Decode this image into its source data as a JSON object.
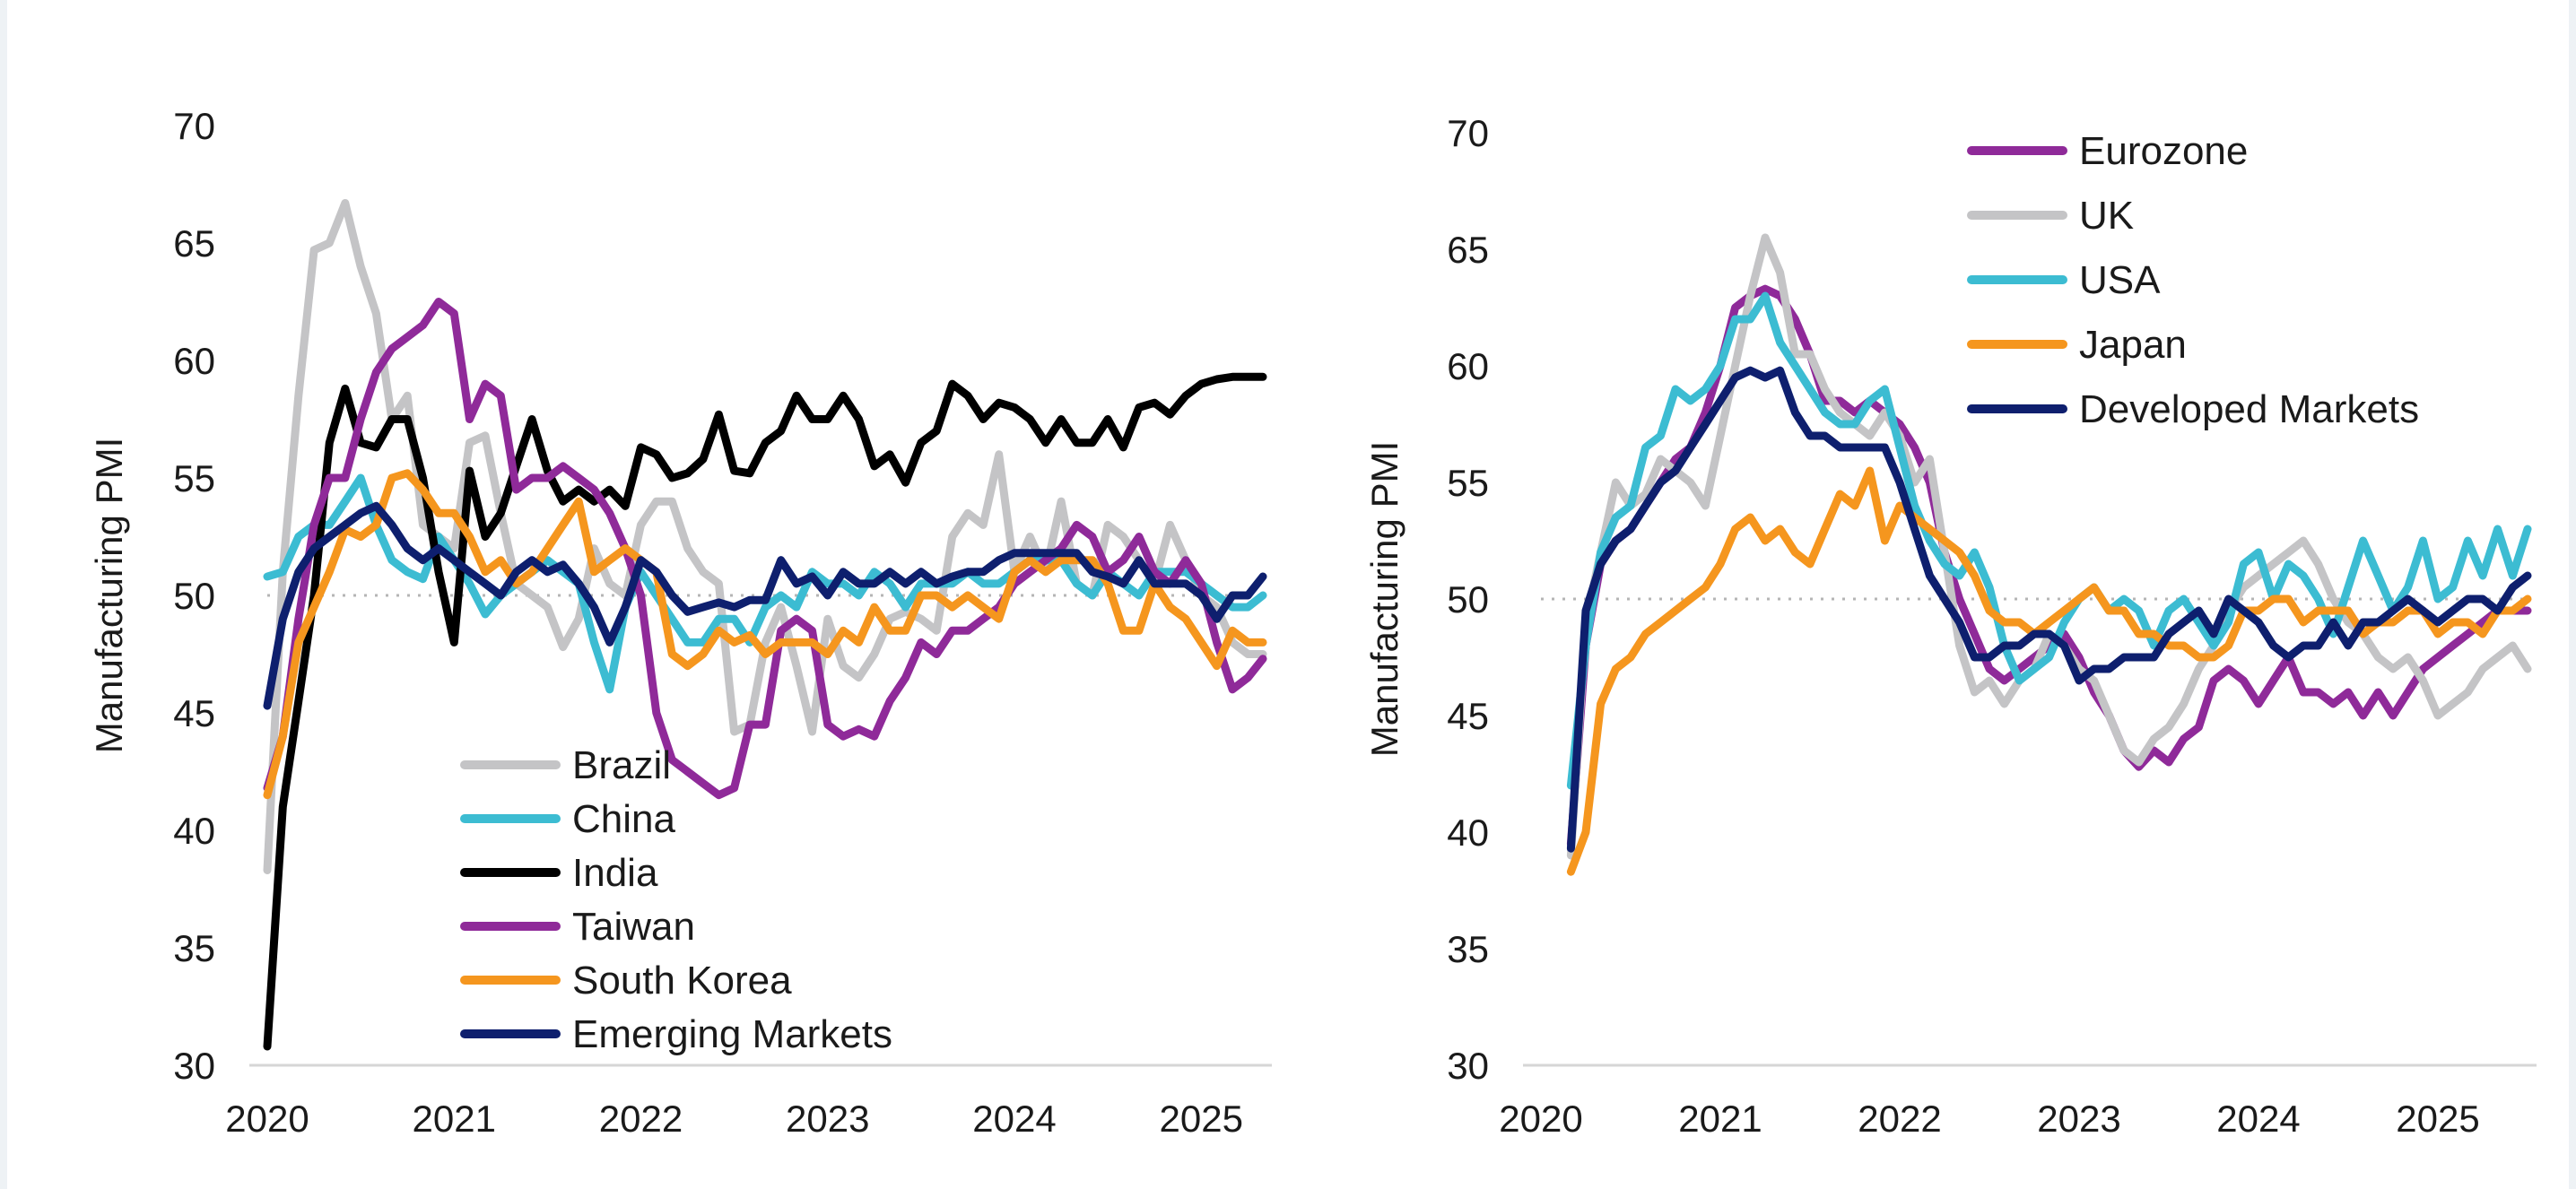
{
  "colors": {
    "grey": "#c4c4c6",
    "cyan": "#3cbcd2",
    "black": "#000000",
    "purple": "#8f2a99",
    "orange": "#f5961e",
    "navy": "#0e1f6e",
    "reference_line": "#b5b5b5",
    "axis": "#d6d6d6"
  },
  "chart_data": [
    {
      "type": "line",
      "ylabel": "Manufacturing PMI",
      "xlabel": "",
      "ylim": [
        30,
        70
      ],
      "yticks": [
        "30",
        "35",
        "40",
        "45",
        "50",
        "55",
        "60",
        "65",
        "70"
      ],
      "xticks": [
        "2020",
        "2021",
        "2022",
        "2023",
        "2024",
        "2025"
      ],
      "xlim": [
        2020,
        2025.33
      ],
      "reference_line": 50,
      "legend_position": "bottom-center",
      "x": [
        2020.0,
        2020.083,
        2020.167,
        2020.25,
        2020.333,
        2020.417,
        2020.5,
        2020.583,
        2020.667,
        2020.75,
        2020.833,
        2020.917,
        2021.0,
        2021.083,
        2021.167,
        2021.25,
        2021.333,
        2021.417,
        2021.5,
        2021.583,
        2021.667,
        2021.75,
        2021.833,
        2021.917,
        2022.0,
        2022.083,
        2022.167,
        2022.25,
        2022.333,
        2022.417,
        2022.5,
        2022.583,
        2022.667,
        2022.75,
        2022.833,
        2022.917,
        2023.0,
        2023.083,
        2023.167,
        2023.25,
        2023.333,
        2023.417,
        2023.5,
        2023.583,
        2023.667,
        2023.75,
        2023.833,
        2023.917,
        2024.0,
        2024.083,
        2024.167,
        2024.25,
        2024.333,
        2024.417,
        2024.5,
        2024.583,
        2024.667,
        2024.75,
        2024.833,
        2024.917,
        2025.0,
        2025.083,
        2025.167,
        2025.25,
        2025.33
      ],
      "series": [
        {
          "name": "Brazil",
          "color": "grey",
          "values": [
            38.3,
            51.0,
            58.5,
            64.7,
            65.0,
            66.7,
            64.0,
            62.0,
            57.5,
            58.5,
            53.0,
            52.5,
            52.0,
            56.5,
            56.8,
            53.5,
            50.5,
            50.0,
            49.5,
            47.8,
            49.0,
            52.0,
            50.5,
            50.0,
            53.0,
            54.0,
            54.0,
            52.0,
            51.0,
            50.5,
            44.2,
            44.5,
            48.0,
            49.5,
            47.0,
            44.2,
            49.0,
            47.0,
            46.5,
            47.5,
            49.0,
            49.3,
            49.0,
            48.5,
            52.5,
            53.5,
            53.0,
            56.0,
            51.0,
            52.5,
            51.0,
            54.0,
            50.5,
            50.0,
            53.0,
            52.5,
            51.5,
            50.5,
            53.0,
            51.5,
            50.0,
            49.5,
            48.0,
            47.5,
            47.5
          ]
        },
        {
          "name": "China",
          "color": "cyan",
          "values": [
            50.8,
            51.0,
            52.5,
            53.0,
            53.0,
            54.0,
            55.0,
            53.0,
            51.5,
            51.0,
            50.7,
            52.5,
            51.5,
            50.5,
            49.2,
            50.0,
            50.5,
            51.0,
            51.5,
            51.0,
            50.5,
            48.0,
            46.0,
            49.5,
            51.0,
            50.0,
            49.0,
            48.0,
            48.0,
            49.0,
            49.0,
            48.0,
            49.5,
            50.0,
            49.5,
            51.0,
            50.5,
            50.5,
            50.0,
            51.0,
            50.5,
            49.5,
            50.5,
            50.5,
            50.5,
            51.0,
            50.5,
            50.5,
            51.0,
            51.5,
            51.5,
            51.5,
            50.5,
            50.0,
            51.0,
            50.5,
            50.0,
            51.0,
            51.0,
            51.0,
            50.5,
            50.0,
            49.5,
            49.5,
            50.0
          ]
        },
        {
          "name": "India",
          "color": "black",
          "values": [
            30.8,
            41.0,
            45.5,
            50.0,
            56.5,
            58.8,
            56.5,
            56.3,
            57.5,
            57.5,
            55.0,
            51.0,
            48.0,
            55.3,
            52.5,
            53.5,
            55.5,
            57.5,
            55.3,
            54.0,
            54.5,
            54.0,
            54.5,
            53.8,
            56.3,
            56.0,
            55.0,
            55.2,
            55.8,
            57.7,
            55.3,
            55.2,
            56.5,
            57.0,
            58.5,
            57.5,
            57.5,
            58.5,
            57.5,
            55.5,
            56.0,
            54.8,
            56.5,
            57.0,
            59.0,
            58.5,
            57.5,
            58.2,
            58.0,
            57.5,
            56.5,
            57.5,
            56.5,
            56.5,
            57.5,
            56.3,
            58.0,
            58.2,
            57.7,
            58.5,
            59.0,
            59.2,
            59.3,
            59.3,
            59.3
          ]
        },
        {
          "name": "Taiwan",
          "color": "purple",
          "values": [
            41.8,
            44.0,
            49.0,
            53.0,
            55.0,
            55.0,
            57.5,
            59.5,
            60.5,
            61.0,
            61.5,
            62.5,
            62.0,
            57.5,
            59.0,
            58.5,
            54.5,
            55.0,
            55.0,
            55.5,
            55.0,
            54.5,
            53.5,
            52.0,
            50.0,
            45.0,
            43.0,
            42.5,
            42.0,
            41.5,
            41.8,
            44.5,
            44.5,
            48.5,
            49.0,
            48.5,
            44.5,
            44.0,
            44.3,
            44.0,
            45.5,
            46.5,
            48.0,
            47.5,
            48.5,
            48.5,
            49.0,
            49.5,
            50.5,
            51.0,
            51.5,
            52.0,
            53.0,
            52.5,
            51.0,
            51.5,
            52.5,
            51.0,
            50.5,
            51.5,
            50.5,
            48.0,
            46.0,
            46.5,
            47.3
          ]
        },
        {
          "name": "South Korea",
          "color": "orange",
          "values": [
            41.5,
            44.0,
            48.0,
            49.5,
            51.0,
            52.8,
            52.5,
            53.0,
            55.0,
            55.2,
            54.5,
            53.5,
            53.5,
            52.5,
            51.0,
            51.5,
            50.5,
            51.0,
            52.0,
            53.0,
            54.0,
            51.0,
            51.5,
            52.0,
            51.5,
            51.0,
            47.5,
            47.0,
            47.5,
            48.5,
            48.0,
            48.3,
            47.5,
            48.0,
            48.0,
            48.0,
            47.5,
            48.5,
            48.0,
            49.5,
            48.5,
            48.5,
            50.0,
            50.0,
            49.5,
            50.0,
            49.5,
            49.0,
            51.0,
            51.5,
            51.0,
            51.5,
            51.5,
            51.5,
            50.5,
            48.5,
            48.5,
            50.5,
            49.5,
            49.0,
            48.0,
            47.0,
            48.5,
            48.0,
            48.0
          ]
        },
        {
          "name": "Emerging Markets",
          "color": "navy",
          "values": [
            45.3,
            49.0,
            51.0,
            52.0,
            52.5,
            53.0,
            53.5,
            53.8,
            53.0,
            52.0,
            51.5,
            52.0,
            51.5,
            51.0,
            50.5,
            50.0,
            51.0,
            51.5,
            51.0,
            51.3,
            50.5,
            49.5,
            48.0,
            49.5,
            51.5,
            51.0,
            50.0,
            49.3,
            49.5,
            49.7,
            49.5,
            49.8,
            49.8,
            51.5,
            50.5,
            50.8,
            50.0,
            51.0,
            50.5,
            50.5,
            51.0,
            50.5,
            51.0,
            50.5,
            50.8,
            51.0,
            51.0,
            51.5,
            51.8,
            51.8,
            51.8,
            51.8,
            51.8,
            51.0,
            50.8,
            50.5,
            51.5,
            50.5,
            50.5,
            50.5,
            50.0,
            49.0,
            50.0,
            50.0,
            50.8
          ]
        }
      ]
    },
    {
      "type": "line",
      "ylabel": "Manufacturing PMI",
      "xlabel": "",
      "ylim": [
        30,
        70
      ],
      "yticks": [
        "30",
        "35",
        "40",
        "45",
        "50",
        "55",
        "60",
        "65",
        "70"
      ],
      "xticks": [
        "2020",
        "2021",
        "2022",
        "2023",
        "2024",
        "2025"
      ],
      "xlim": [
        2020,
        2025.5
      ],
      "reference_line": 50,
      "legend_position": "top-right",
      "x": [
        2020.167,
        2020.25,
        2020.333,
        2020.417,
        2020.5,
        2020.583,
        2020.667,
        2020.75,
        2020.833,
        2020.917,
        2021.0,
        2021.083,
        2021.167,
        2021.25,
        2021.333,
        2021.417,
        2021.5,
        2021.583,
        2021.667,
        2021.75,
        2021.833,
        2021.917,
        2022.0,
        2022.083,
        2022.167,
        2022.25,
        2022.333,
        2022.417,
        2022.5,
        2022.583,
        2022.667,
        2022.75,
        2022.833,
        2022.917,
        2023.0,
        2023.083,
        2023.167,
        2023.25,
        2023.333,
        2023.417,
        2023.5,
        2023.583,
        2023.667,
        2023.75,
        2023.833,
        2023.917,
        2024.0,
        2024.083,
        2024.167,
        2024.25,
        2024.333,
        2024.417,
        2024.5,
        2024.583,
        2024.667,
        2024.75,
        2024.833,
        2024.917,
        2025.0,
        2025.083,
        2025.167,
        2025.25,
        2025.333,
        2025.417,
        2025.5
      ],
      "series": [
        {
          "name": "Eurozone",
          "color": "purple",
          "values": [
            39.5,
            48.0,
            51.5,
            52.5,
            53.0,
            54.0,
            55.0,
            56.0,
            56.5,
            58.0,
            60.0,
            62.5,
            63.0,
            63.3,
            63.0,
            62.0,
            60.5,
            58.5,
            58.5,
            58.0,
            58.5,
            58.0,
            57.5,
            56.5,
            55.0,
            52.0,
            50.0,
            48.5,
            47.0,
            46.5,
            47.0,
            47.5,
            48.0,
            48.5,
            47.5,
            46.0,
            45.0,
            43.5,
            42.8,
            43.5,
            43.0,
            44.0,
            44.5,
            46.5,
            47.0,
            46.5,
            45.5,
            46.5,
            47.5,
            46.0,
            46.0,
            45.5,
            46.0,
            45.0,
            46.0,
            45.0,
            46.0,
            47.0,
            47.5,
            48.0,
            48.5,
            49.0,
            49.5,
            49.5,
            49.5
          ]
        },
        {
          "name": "UK",
          "color": "grey",
          "values": [
            39.0,
            49.0,
            52.0,
            55.0,
            54.0,
            54.5,
            56.0,
            55.5,
            55.0,
            54.0,
            57.0,
            60.0,
            63.0,
            65.5,
            64.0,
            60.5,
            60.5,
            59.0,
            58.0,
            57.5,
            57.0,
            58.0,
            57.0,
            55.0,
            56.0,
            52.0,
            48.0,
            46.0,
            46.5,
            45.5,
            46.5,
            47.0,
            48.5,
            48.0,
            47.0,
            46.5,
            45.0,
            43.5,
            43.0,
            44.0,
            44.5,
            45.5,
            47.0,
            48.0,
            49.5,
            50.5,
            51.0,
            51.5,
            52.0,
            52.5,
            51.5,
            50.0,
            49.0,
            48.5,
            47.5,
            47.0,
            47.5,
            46.5,
            45.0,
            45.5,
            46.0,
            47.0,
            47.5,
            48.0,
            47.0
          ]
        },
        {
          "name": "USA",
          "color": "cyan",
          "values": [
            42.0,
            48.0,
            52.0,
            53.5,
            54.0,
            56.5,
            57.0,
            59.0,
            58.5,
            59.0,
            60.0,
            62.0,
            62.0,
            63.0,
            61.0,
            60.0,
            59.0,
            58.0,
            57.5,
            57.5,
            58.5,
            59.0,
            56.5,
            54.0,
            52.5,
            51.5,
            51.0,
            52.0,
            50.5,
            48.0,
            46.5,
            47.0,
            47.5,
            49.0,
            50.0,
            50.5,
            49.5,
            50.0,
            49.5,
            48.0,
            49.5,
            50.0,
            49.0,
            48.0,
            49.0,
            51.5,
            52.0,
            50.0,
            51.5,
            51.0,
            50.0,
            48.5,
            50.5,
            52.5,
            51.0,
            49.5,
            50.5,
            52.5,
            50.0,
            50.5,
            52.5,
            51.0,
            53.0,
            51.0,
            53.0
          ]
        },
        {
          "name": "Japan",
          "color": "orange",
          "values": [
            38.3,
            40.0,
            45.5,
            47.0,
            47.5,
            48.5,
            49.0,
            49.5,
            50.0,
            50.5,
            51.5,
            53.0,
            53.5,
            52.5,
            53.0,
            52.0,
            51.5,
            53.0,
            54.5,
            54.0,
            55.5,
            52.5,
            54.0,
            53.5,
            53.0,
            52.5,
            52.0,
            51.0,
            49.5,
            49.0,
            49.0,
            48.5,
            49.0,
            49.5,
            50.0,
            50.5,
            49.5,
            49.5,
            48.5,
            48.5,
            48.0,
            48.0,
            47.5,
            47.5,
            48.0,
            49.5,
            49.5,
            50.0,
            50.0,
            49.0,
            49.5,
            49.5,
            49.5,
            48.5,
            49.0,
            49.0,
            49.5,
            49.5,
            48.5,
            49.0,
            49.0,
            48.5,
            49.5,
            49.5,
            50.0
          ]
        },
        {
          "name": "Developed Markets",
          "color": "navy",
          "values": [
            39.3,
            49.5,
            51.5,
            52.5,
            53.0,
            54.0,
            55.0,
            55.5,
            56.5,
            57.5,
            58.5,
            59.5,
            59.8,
            59.5,
            59.8,
            58.0,
            57.0,
            57.0,
            56.5,
            56.5,
            56.5,
            56.5,
            55.0,
            53.0,
            51.0,
            50.0,
            49.0,
            47.5,
            47.5,
            48.0,
            48.0,
            48.5,
            48.5,
            48.0,
            46.5,
            47.0,
            47.0,
            47.5,
            47.5,
            47.5,
            48.5,
            49.0,
            49.5,
            48.5,
            50.0,
            49.5,
            49.0,
            48.0,
            47.5,
            48.0,
            48.0,
            49.0,
            48.0,
            49.0,
            49.0,
            49.5,
            50.0,
            49.5,
            49.0,
            49.5,
            50.0,
            50.0,
            49.5,
            50.5,
            51.0
          ]
        }
      ]
    }
  ]
}
